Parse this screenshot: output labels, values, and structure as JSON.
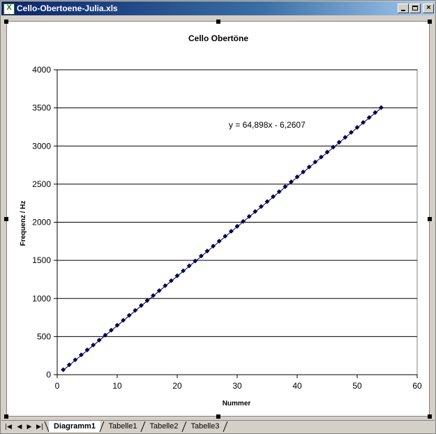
{
  "window": {
    "title": "Cello-Obertoene-Julia.xls"
  },
  "sheet_tabs": [
    {
      "label": "Diagramm1",
      "active": true
    },
    {
      "label": "Tabelle1",
      "active": false
    },
    {
      "label": "Tabelle2",
      "active": false
    },
    {
      "label": "Tabelle3",
      "active": false
    }
  ],
  "nav_buttons": [
    "first-sheet",
    "prev-sheet",
    "next-sheet",
    "last-sheet"
  ],
  "colors": {
    "marker": "#00005a",
    "trendline": "#000000",
    "titlebar": "#0a246a"
  },
  "chart_data": {
    "type": "scatter",
    "title": "Cello Obertöne",
    "xlabel": "Nummer",
    "ylabel": "Frequenz / Hz",
    "xlim": [
      0,
      60
    ],
    "ylim": [
      0,
      4000
    ],
    "xticks": [
      0,
      10,
      20,
      30,
      40,
      50,
      60
    ],
    "yticks": [
      0,
      500,
      1000,
      1500,
      2000,
      2500,
      3000,
      3500,
      4000
    ],
    "grid": "horizontal",
    "legend": "none",
    "trendline": {
      "type": "linear",
      "equation": "y = 64,898x - 6,2607",
      "slope": 64.898,
      "intercept": -6.2607
    },
    "series": [
      {
        "x": [
          1,
          2,
          3,
          4,
          5,
          6,
          7,
          8,
          9,
          10,
          11,
          12,
          13,
          14,
          15,
          16,
          17,
          18,
          19,
          20,
          21,
          22,
          23,
          24,
          25,
          26,
          27,
          28,
          29,
          30,
          31,
          32,
          33,
          34,
          35,
          36,
          37,
          38,
          39,
          40,
          41,
          42,
          43,
          44,
          45,
          46,
          47,
          48,
          49,
          50,
          51,
          52,
          53,
          54
        ],
        "y": [
          65,
          130,
          195,
          260,
          325,
          389,
          454,
          519,
          584,
          649,
          714,
          779,
          844,
          908,
          973,
          1038,
          1103,
          1168,
          1233,
          1298,
          1363,
          1428,
          1492,
          1557,
          1622,
          1687,
          1752,
          1817,
          1882,
          1947,
          2011,
          2076,
          2141,
          2206,
          2271,
          2336,
          2401,
          2466,
          2530,
          2595,
          2660,
          2725,
          2790,
          2855,
          2920,
          2985,
          3050,
          3114,
          3179,
          3244,
          3309,
          3374,
          3439,
          3504
        ]
      }
    ]
  }
}
